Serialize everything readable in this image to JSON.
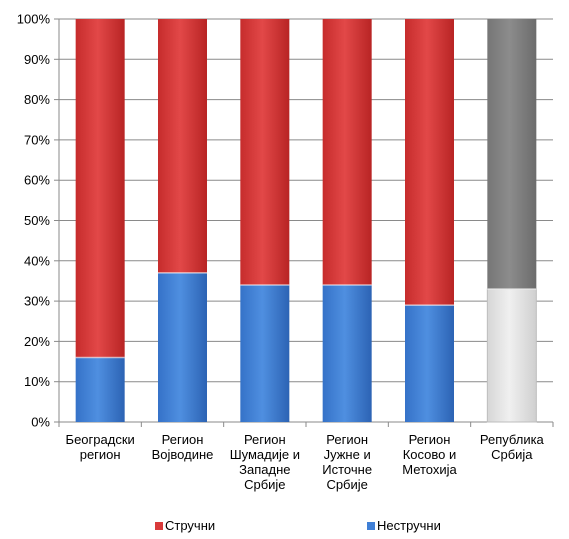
{
  "chart_data": {
    "type": "bar",
    "stacked": true,
    "percent": true,
    "title": "",
    "xlabel": "",
    "ylabel": "",
    "ylim": [
      0,
      100
    ],
    "yticks": [
      "0%",
      "10%",
      "20%",
      "30%",
      "40%",
      "50%",
      "60%",
      "70%",
      "80%",
      "90%",
      "100%"
    ],
    "grid": true,
    "legend_position": "bottom",
    "categories": [
      [
        "Београдски",
        "регион"
      ],
      [
        "Регион",
        "Војводине"
      ],
      [
        "Регион",
        "Шумадије и",
        "Западне",
        "Србије"
      ],
      [
        "Регион",
        "Јужне и",
        "Источне",
        "Србије"
      ],
      [
        "Регион",
        "Косово и",
        "Метохија"
      ],
      [
        "Република",
        "Србија"
      ]
    ],
    "series": [
      {
        "name": "Нестручни",
        "values": [
          16,
          37,
          34,
          34,
          29,
          33
        ],
        "color": "#3f7fd6"
      },
      {
        "name": "Стручни",
        "values": [
          84,
          63,
          66,
          66,
          71,
          67
        ],
        "color": "#d93a3a"
      }
    ],
    "last_bar_colors": {
      "Нестручни": "#e0e0e0",
      "Стручни": "#808080"
    },
    "legend": [
      {
        "label": "Стручни",
        "color": "#d93a3a"
      },
      {
        "label": "Нестручни",
        "color": "#3f7fd6"
      }
    ]
  }
}
